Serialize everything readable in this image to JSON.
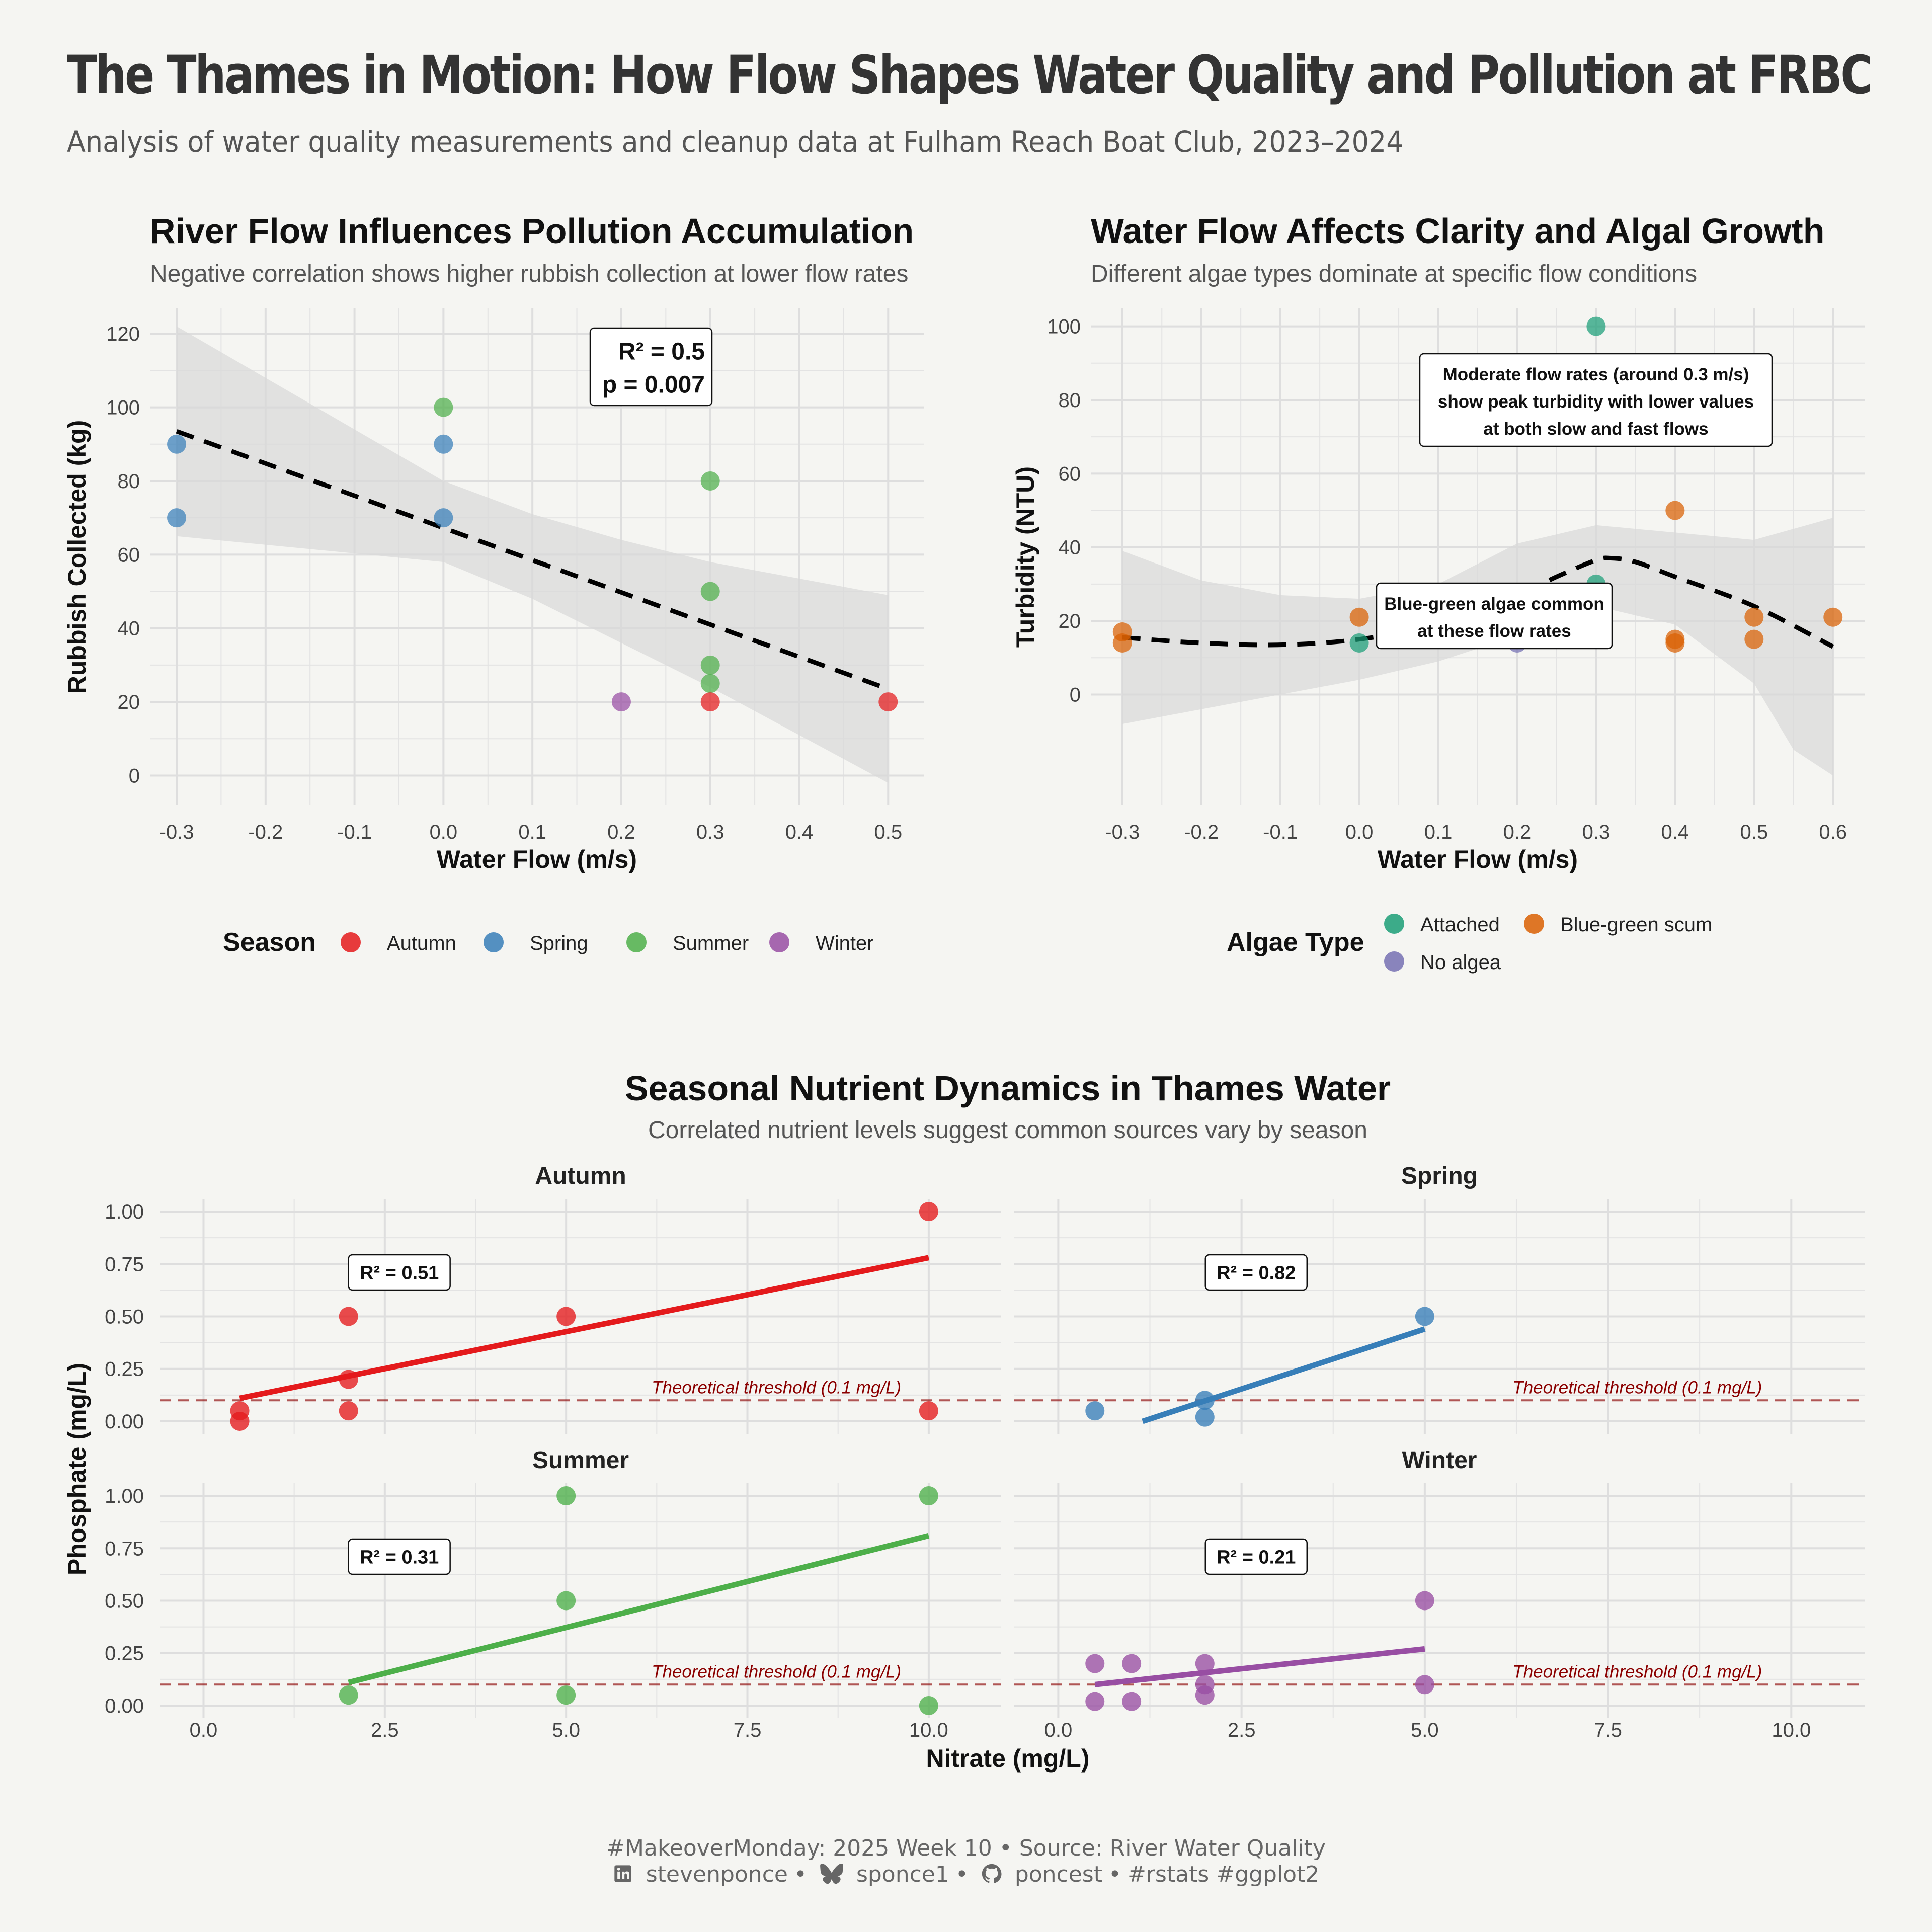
{
  "header": {
    "title": "The Thames in Motion: How Flow Shapes Water Quality and Pollution at FRBC",
    "subtitle": "Analysis of water quality measurements and cleanup data at Fulham Reach Boat Club, 2023–2024"
  },
  "footer": {
    "line1": "#MakeoverMonday: 2025 Week 10 • Source: River Water Quality",
    "linkedin": "stevenponce",
    "bluesky": "sponce1",
    "github": "poncest",
    "tags": "#rstats #ggplot2",
    "sep": "•"
  },
  "colors": {
    "Autumn": "#e41a1c",
    "Spring": "#377eb8",
    "Summer": "#4daf4a",
    "Winter": "#984ea3",
    "Attached": "#1b9e77",
    "Blue-green scum": "#d95f02",
    "No algea": "#7570b3",
    "threshold": "#8b0000",
    "grid": "#e3e3e3",
    "ribbon": "#d9d9d9"
  },
  "chart_data": [
    {
      "type": "scatter",
      "title": "River Flow Influences Pollution Accumulation",
      "subtitle": "Negative correlation shows higher rubbish collection at lower flow rates",
      "xlabel": "Water Flow (m/s)",
      "ylabel": "Rubbish Collected (kg)",
      "xlim": [
        -0.33,
        0.54
      ],
      "ylim": [
        -8,
        127
      ],
      "xticks": [
        "-0.3",
        "-0.2",
        "-0.1",
        "0.0",
        "0.1",
        "0.2",
        "0.3",
        "0.4",
        "0.5"
      ],
      "yticks": [
        "0",
        "20",
        "40",
        "60",
        "80",
        "100",
        "120"
      ],
      "legend_title": "Season",
      "legend_items": [
        "Autumn",
        "Spring",
        "Summer",
        "Winter"
      ],
      "annotation": [
        "R² = 0.5",
        "p = 0.007"
      ],
      "points": [
        {
          "x": -0.3,
          "y": 90,
          "group": "Spring"
        },
        {
          "x": -0.3,
          "y": 70,
          "group": "Spring"
        },
        {
          "x": 0.0,
          "y": 100,
          "group": "Summer"
        },
        {
          "x": 0.0,
          "y": 90,
          "group": "Spring"
        },
        {
          "x": 0.0,
          "y": 70,
          "group": "Spring"
        },
        {
          "x": 0.2,
          "y": 20,
          "group": "Winter"
        },
        {
          "x": 0.3,
          "y": 80,
          "group": "Summer"
        },
        {
          "x": 0.3,
          "y": 50,
          "group": "Summer"
        },
        {
          "x": 0.3,
          "y": 30,
          "group": "Summer"
        },
        {
          "x": 0.3,
          "y": 25,
          "group": "Summer"
        },
        {
          "x": 0.3,
          "y": 20,
          "group": "Autumn"
        },
        {
          "x": 0.5,
          "y": 20,
          "group": "Autumn"
        }
      ],
      "trend": {
        "type": "linear",
        "x": [
          -0.3,
          0.5
        ],
        "y": [
          93.5,
          23.5
        ]
      },
      "band": {
        "x": [
          -0.3,
          0.0,
          0.1,
          0.2,
          0.3,
          0.5
        ],
        "lower": [
          65,
          58,
          48,
          36,
          24,
          -2
        ],
        "upper": [
          122,
          80,
          71,
          64,
          58,
          49
        ]
      }
    },
    {
      "type": "scatter",
      "title": "Water Flow Affects Clarity and Algal Growth",
      "subtitle": "Different algae types dominate at specific flow conditions",
      "xlabel": "Water Flow (m/s)",
      "ylabel": "Turbidity (NTU)",
      "xlim": [
        -0.34,
        0.64
      ],
      "ylim": [
        -30,
        105
      ],
      "xticks": [
        "-0.3",
        "-0.2",
        "-0.1",
        "0.0",
        "0.1",
        "0.2",
        "0.3",
        "0.4",
        "0.5",
        "0.6"
      ],
      "yticks": [
        "0",
        "20",
        "40",
        "60",
        "80",
        "100"
      ],
      "legend_title": "Algae Type",
      "legend_items": [
        "Attached",
        "Blue-green scum",
        "No algea"
      ],
      "annotations": [
        [
          "Moderate flow rates (around 0.3 m/s)",
          "show peak turbidity with lower values",
          "at both slow and fast flows"
        ],
        [
          "Blue-green algae common",
          "at these flow rates"
        ]
      ],
      "points": [
        {
          "x": -0.3,
          "y": 17,
          "group": "Blue-green scum"
        },
        {
          "x": -0.3,
          "y": 14,
          "group": "Blue-green scum"
        },
        {
          "x": 0.0,
          "y": 21,
          "group": "Blue-green scum"
        },
        {
          "x": 0.0,
          "y": 14,
          "group": "Attached"
        },
        {
          "x": 0.2,
          "y": 14,
          "group": "No algea"
        },
        {
          "x": 0.3,
          "y": 100,
          "group": "Attached"
        },
        {
          "x": 0.3,
          "y": 30,
          "group": "Attached"
        },
        {
          "x": 0.3,
          "y": 21,
          "group": "Attached"
        },
        {
          "x": 0.3,
          "y": 15,
          "group": "Blue-green scum"
        },
        {
          "x": 0.4,
          "y": 50,
          "group": "Blue-green scum"
        },
        {
          "x": 0.4,
          "y": 15,
          "group": "Blue-green scum"
        },
        {
          "x": 0.4,
          "y": 14,
          "group": "Blue-green scum"
        },
        {
          "x": 0.5,
          "y": 21,
          "group": "Blue-green scum"
        },
        {
          "x": 0.5,
          "y": 15,
          "group": "Blue-green scum"
        },
        {
          "x": 0.6,
          "y": 21,
          "group": "Blue-green scum"
        }
      ],
      "trend": {
        "type": "loess",
        "x": [
          -0.3,
          -0.2,
          -0.1,
          0.0,
          0.1,
          0.2,
          0.25,
          0.3,
          0.32,
          0.35,
          0.4,
          0.5,
          0.6
        ],
        "y": [
          15.5,
          14,
          13.5,
          15,
          19,
          27,
          32,
          36.5,
          37,
          36,
          32,
          24,
          13
        ]
      },
      "band": {
        "x": [
          -0.3,
          -0.2,
          -0.1,
          0.0,
          0.1,
          0.2,
          0.3,
          0.4,
          0.5,
          0.55,
          0.6
        ],
        "lower": [
          -8,
          -4,
          0,
          4,
          9,
          16,
          24,
          19,
          3,
          -15,
          -22
        ],
        "upper": [
          39,
          31,
          27,
          26,
          30,
          41,
          46,
          44,
          42,
          45,
          48
        ]
      }
    },
    {
      "type": "scatter",
      "title": "Seasonal Nutrient Dynamics in Thames Water",
      "subtitle": "Correlated nutrient levels suggest common sources vary by season",
      "xlabel": "Nitrate (mg/L)",
      "ylabel": "Phosphate (mg/L)",
      "xlim": [
        -0.6,
        11.0
      ],
      "ylim": [
        -0.06,
        1.06
      ],
      "xticks": [
        "0.0",
        "2.5",
        "5.0",
        "7.5",
        "10.0"
      ],
      "yticks": [
        "0.00",
        "0.25",
        "0.50",
        "0.75",
        "1.00"
      ],
      "threshold": {
        "y": 0.1,
        "label": "Theoretical threshold (0.1 mg/L)"
      },
      "facets": [
        {
          "name": "Autumn",
          "r2": "R² = 0.51",
          "points": [
            [
              0.5,
              0.05
            ],
            [
              0.5,
              0.0
            ],
            [
              2,
              0.5
            ],
            [
              2,
              0.2
            ],
            [
              2,
              0.05
            ],
            [
              5,
              0.5
            ],
            [
              10,
              1.0
            ],
            [
              10,
              0.05
            ]
          ],
          "fit": {
            "x": [
              0.5,
              10
            ],
            "y": [
              0.11,
              0.78
            ]
          }
        },
        {
          "name": "Spring",
          "r2": "R² = 0.82",
          "points": [
            [
              0.5,
              0.05
            ],
            [
              2,
              0.1
            ],
            [
              2,
              0.02
            ],
            [
              5,
              0.5
            ]
          ],
          "fit": {
            "x": [
              1.15,
              5
            ],
            "y": [
              0.0,
              0.44
            ]
          }
        },
        {
          "name": "Summer",
          "r2": "R² = 0.31",
          "points": [
            [
              2,
              0.05
            ],
            [
              5,
              1.0
            ],
            [
              5,
              0.5
            ],
            [
              5,
              0.05
            ],
            [
              10,
              1.0
            ],
            [
              10,
              0.0
            ]
          ],
          "fit": {
            "x": [
              2,
              10
            ],
            "y": [
              0.11,
              0.81
            ]
          }
        },
        {
          "name": "Winter",
          "r2": "R² = 0.21",
          "points": [
            [
              0.5,
              0.2
            ],
            [
              0.5,
              0.02
            ],
            [
              1,
              0.2
            ],
            [
              1,
              0.02
            ],
            [
              2,
              0.2
            ],
            [
              2,
              0.1
            ],
            [
              2,
              0.05
            ],
            [
              5,
              0.5
            ],
            [
              5,
              0.1
            ]
          ],
          "fit": {
            "x": [
              0.5,
              5
            ],
            "y": [
              0.1,
              0.27
            ]
          }
        }
      ]
    }
  ]
}
